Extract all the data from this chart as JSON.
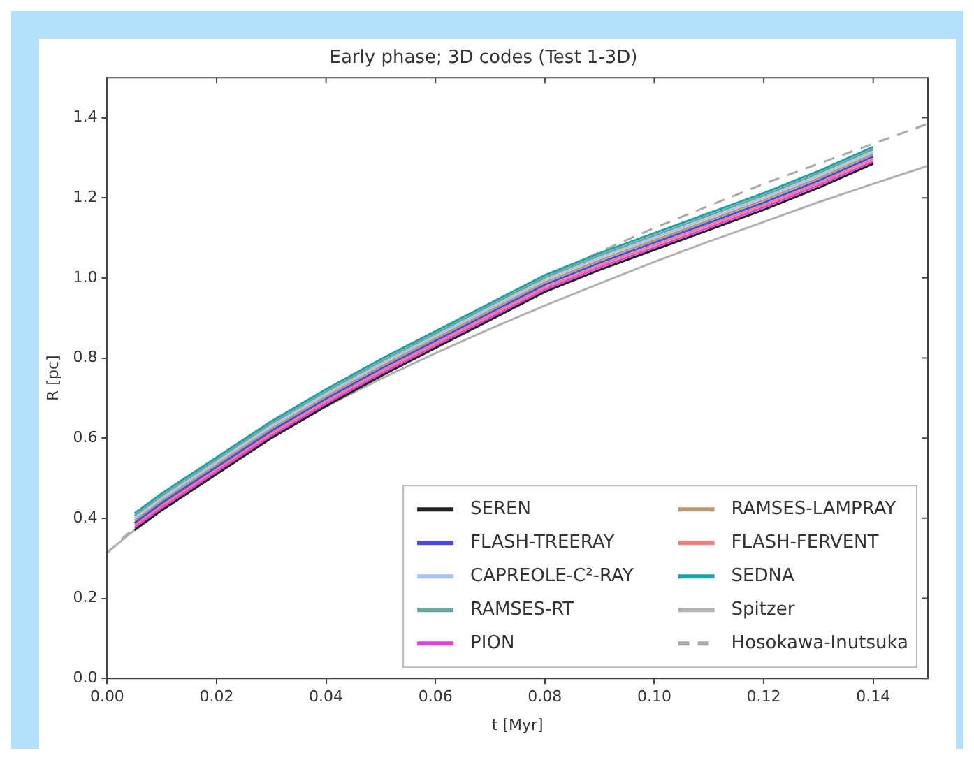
{
  "chart_data": {
    "type": "line",
    "title": "Early phase; 3D codes (Test 1-3D)",
    "xlabel": "t [Myr]",
    "ylabel": "R [pc]",
    "x": [
      0.005,
      0.01,
      0.02,
      0.03,
      0.04,
      0.05,
      0.06,
      0.07,
      0.08,
      0.09,
      0.1,
      0.11,
      0.12,
      0.13,
      0.14
    ],
    "series": [
      {
        "name": "SEREN",
        "color": "#222222",
        "values": [
          0.37,
          0.42,
          0.51,
          0.6,
          0.68,
          0.755,
          0.825,
          0.895,
          0.965,
          1.02,
          1.07,
          1.12,
          1.17,
          1.225,
          1.285
        ]
      },
      {
        "name": "FLASH-TREERAY",
        "color": "#4a4ae0",
        "values": [
          0.388,
          0.438,
          0.528,
          0.618,
          0.698,
          0.773,
          0.843,
          0.913,
          0.983,
          1.038,
          1.088,
          1.138,
          1.188,
          1.243,
          1.303
        ]
      },
      {
        "name": "CAPREOLE-C²-RAY",
        "color": "#aac4f0",
        "values": [
          0.4,
          0.45,
          0.54,
          0.63,
          0.71,
          0.785,
          0.855,
          0.925,
          0.995,
          1.05,
          1.1,
          1.15,
          1.2,
          1.255,
          1.315
        ]
      },
      {
        "name": "RAMSES-RT",
        "color": "#6aa8a0",
        "values": [
          0.406,
          0.456,
          0.546,
          0.636,
          0.716,
          0.791,
          0.861,
          0.931,
          1.001,
          1.056,
          1.106,
          1.156,
          1.206,
          1.261,
          1.321
        ]
      },
      {
        "name": "PION",
        "color": "#e040e0",
        "values": [
          0.376,
          0.426,
          0.516,
          0.606,
          0.686,
          0.761,
          0.831,
          0.901,
          0.971,
          1.026,
          1.076,
          1.126,
          1.176,
          1.231,
          1.291
        ]
      },
      {
        "name": "RAMSES-LAMPRAY",
        "color": "#b89a70",
        "values": [
          0.394,
          0.444,
          0.534,
          0.624,
          0.704,
          0.779,
          0.849,
          0.919,
          0.989,
          1.044,
          1.094,
          1.144,
          1.194,
          1.249,
          1.309
        ]
      },
      {
        "name": "FLASH-FERVENT",
        "color": "#f08080",
        "values": [
          0.382,
          0.432,
          0.522,
          0.612,
          0.692,
          0.767,
          0.837,
          0.907,
          0.977,
          1.032,
          1.082,
          1.132,
          1.182,
          1.237,
          1.297
        ]
      },
      {
        "name": "SEDNA",
        "color": "#20a0a0",
        "values": [
          0.412,
          0.462,
          0.552,
          0.642,
          0.722,
          0.797,
          0.867,
          0.937,
          1.007,
          1.062,
          1.112,
          1.162,
          1.212,
          1.267,
          1.327
        ]
      },
      {
        "name": "Spitzer",
        "color": "#b0b0b0",
        "x": [
          0,
          0.01,
          0.02,
          0.03,
          0.04,
          0.05,
          0.06,
          0.07,
          0.08,
          0.09,
          0.1,
          0.11,
          0.12,
          0.13,
          0.14,
          0.15
        ],
        "values": [
          0.314,
          0.427,
          0.521,
          0.604,
          0.679,
          0.748,
          0.812,
          0.873,
          0.931,
          0.986,
          1.04,
          1.091,
          1.14,
          1.189,
          1.235,
          1.28
        ]
      },
      {
        "name": "Hosokawa-Inutsuka",
        "color": "#aaaaaa",
        "line_style": "dashed",
        "x": [
          0,
          0.01,
          0.02,
          0.03,
          0.04,
          0.05,
          0.06,
          0.07,
          0.08,
          0.09,
          0.1,
          0.11,
          0.12,
          0.13,
          0.14,
          0.15
        ],
        "values": [
          0.314,
          0.44,
          0.548,
          0.636,
          0.716,
          0.79,
          0.862,
          0.932,
          1.0,
          1.065,
          1.125,
          1.18,
          1.235,
          1.285,
          1.335,
          1.385
        ]
      }
    ],
    "xlim": [
      0,
      0.15
    ],
    "xticks": [
      {
        "value": 0,
        "label": "0.00"
      },
      {
        "value": 0.02,
        "label": "0.02"
      },
      {
        "value": 0.04,
        "label": "0.04"
      },
      {
        "value": 0.06,
        "label": "0.06"
      },
      {
        "value": 0.08,
        "label": "0.08"
      },
      {
        "value": 0.1,
        "label": "0.10"
      },
      {
        "value": 0.12,
        "label": "0.12"
      },
      {
        "value": 0.14,
        "label": "0.14"
      }
    ],
    "ylim": [
      0,
      1.5
    ],
    "yticks": [
      {
        "value": 0,
        "label": "0.0"
      },
      {
        "value": 0.2,
        "label": "0.2"
      },
      {
        "value": 0.4,
        "label": "0.4"
      },
      {
        "value": 0.6,
        "label": "0.6"
      },
      {
        "value": 0.8,
        "label": "0.8"
      },
      {
        "value": 1,
        "label": "1.0"
      },
      {
        "value": 1.2,
        "label": "1.2"
      },
      {
        "value": 1.4,
        "label": "1.4"
      }
    ],
    "grid": false,
    "legend": "bottom right",
    "marker": "none",
    "line_style": "solid"
  }
}
